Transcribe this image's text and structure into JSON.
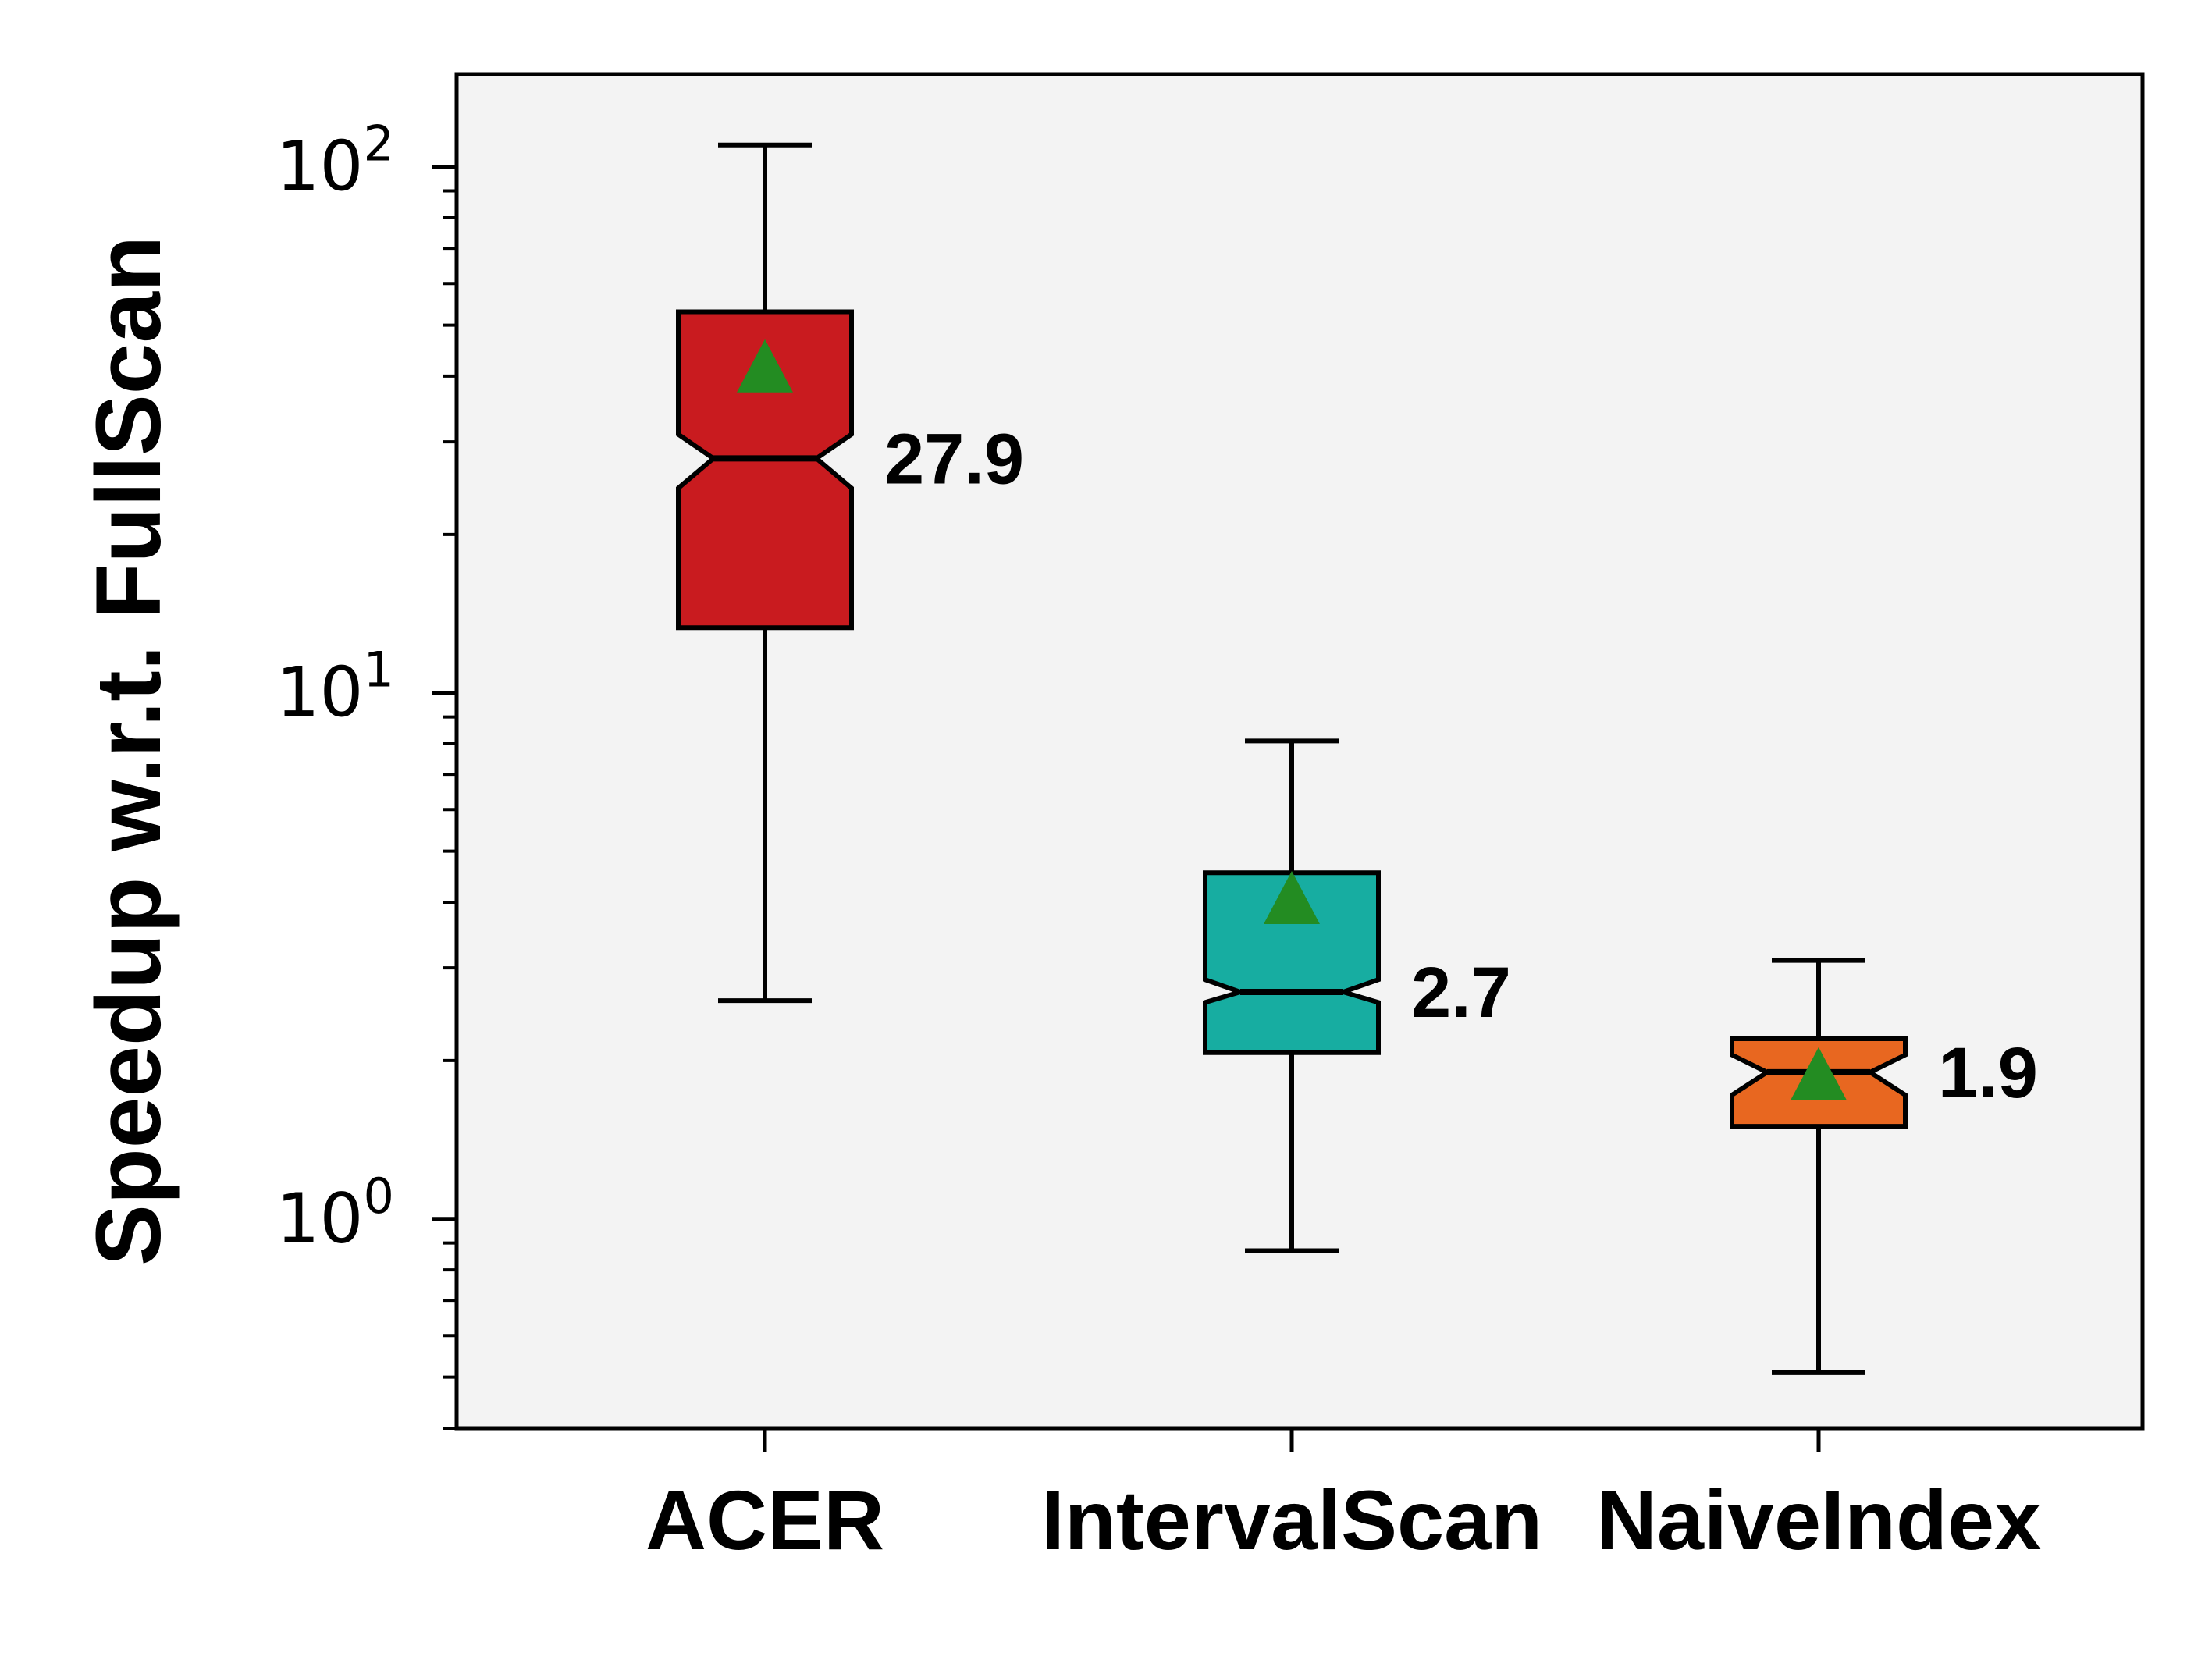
{
  "chart_data": {
    "type": "box",
    "ylabel": "Speedup w.r.t. FullScan",
    "yscale": "log",
    "ylim": [
      0.4,
      150
    ],
    "yticks": [
      {
        "value": 1,
        "base": "10",
        "exp": "0"
      },
      {
        "value": 10,
        "base": "10",
        "exp": "1"
      },
      {
        "value": 100,
        "base": "10",
        "exp": "2"
      }
    ],
    "notched": true,
    "show_means": true,
    "categories": [
      "ACER",
      "IntervalScan",
      "NaiveIndex"
    ],
    "boxes": [
      {
        "name": "ACER",
        "whisker_low": 2.6,
        "q1": 13.3,
        "median": 27.9,
        "q3": 53,
        "whisker_high": 110,
        "mean": 41,
        "notch_low": 24.5,
        "notch_high": 31,
        "color": "#c91b1f",
        "median_label": "27.9"
      },
      {
        "name": "IntervalScan",
        "whisker_low": 0.87,
        "q1": 2.07,
        "median": 2.7,
        "q3": 4.55,
        "whisker_high": 8.1,
        "mean": 4.0,
        "notch_low": 2.58,
        "notch_high": 2.85,
        "color": "#17ada1",
        "median_label": "2.7"
      },
      {
        "name": "NaiveIndex",
        "whisker_low": 0.51,
        "q1": 1.5,
        "median": 1.9,
        "q3": 2.2,
        "whisker_high": 3.1,
        "mean": 1.85,
        "notch_low": 1.72,
        "notch_high": 2.05,
        "color": "#e86720",
        "median_label": "1.9"
      }
    ],
    "mean_marker_color": "#238c22",
    "background": "#f3f3f3",
    "grid": false,
    "legend": "none"
  }
}
